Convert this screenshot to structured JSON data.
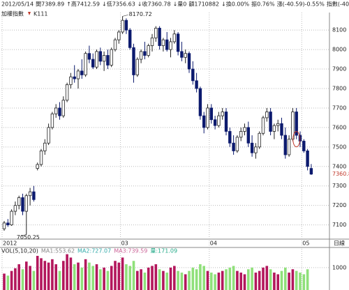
{
  "chart_data": {
    "type": "candlestick",
    "header": [
      "2012/05/14",
      "開7389.89",
      "↑高7412.59",
      "↓低7356.63",
      "↓收7360.78",
      "↓量0",
      "額1710882",
      "↓換0.00%",
      "振0.76%",
      "漲(-40.59)-0.55%",
      "指數(-40.59)-0."
    ],
    "subheader": [
      "加權指數",
      "K111"
    ],
    "open": [
      7080,
      7110,
      7100,
      7170,
      7200,
      7240,
      7170,
      7250,
      7270,
      7390,
      7410,
      7480,
      7520,
      7600,
      7670,
      7700,
      7660,
      7740,
      7820,
      7860,
      7850,
      7890,
      7870,
      7980,
      7950,
      7910,
      7990,
      7940,
      7970,
      7920,
      8000,
      8050,
      8090,
      8150,
      8100,
      8010,
      7870,
      7950,
      7990,
      7970,
      8020,
      8060,
      8110,
      8020,
      8050,
      8000,
      8040,
      8080,
      7990,
      7960,
      7980,
      7900,
      7840,
      7800,
      7660,
      7600,
      7700,
      7640,
      7610,
      7660,
      7680,
      7580,
      7520,
      7480,
      7550,
      7580,
      7600,
      7520,
      7470,
      7500,
      7570,
      7650,
      7680,
      7580,
      7610,
      7620,
      7560,
      7460,
      7540,
      7680,
      7560,
      7530,
      7480,
      7389.89
    ],
    "high": [
      7120,
      7130,
      7180,
      7220,
      7250,
      7260,
      7260,
      7290,
      7300,
      7420,
      7490,
      7540,
      7620,
      7680,
      7720,
      7730,
      7760,
      7830,
      7880,
      7920,
      7900,
      7950,
      7990,
      8020,
      7980,
      8000,
      8010,
      7990,
      8000,
      8010,
      8060,
      8100,
      8170.72,
      8160,
      8110,
      8030,
      7960,
      8000,
      8040,
      8030,
      8080,
      8120,
      8120,
      8060,
      8090,
      8060,
      8100,
      8090,
      8040,
      8000,
      7990,
      7940,
      7880,
      7810,
      7680,
      7720,
      7720,
      7660,
      7680,
      7700,
      7700,
      7600,
      7560,
      7560,
      7600,
      7620,
      7630,
      7560,
      7520,
      7580,
      7660,
      7700,
      7700,
      7620,
      7640,
      7650,
      7600,
      7560,
      7700,
      7700,
      7580,
      7540,
      7490,
      7412.59
    ],
    "low": [
      7070,
      7090,
      7095,
      7150,
      7180,
      7150,
      7050.25,
      7200,
      7220,
      7380,
      7400,
      7460,
      7510,
      7590,
      7650,
      7640,
      7650,
      7730,
      7800,
      7830,
      7800,
      7850,
      7860,
      7930,
      7900,
      7900,
      7920,
      7890,
      7900,
      7910,
      7990,
      8030,
      8080,
      8080,
      8000,
      7830,
      7860,
      7930,
      7950,
      7960,
      7990,
      8040,
      8000,
      7990,
      7990,
      7960,
      8030,
      7970,
      7940,
      7930,
      7880,
      7820,
      7780,
      7640,
      7570,
      7590,
      7620,
      7590,
      7600,
      7640,
      7560,
      7500,
      7460,
      7470,
      7530,
      7560,
      7500,
      7450,
      7440,
      7490,
      7560,
      7630,
      7560,
      7540,
      7580,
      7540,
      7440,
      7450,
      7530,
      7540,
      7500,
      7470,
      7380,
      7356.63
    ],
    "close": [
      7110,
      7100,
      7170,
      7200,
      7240,
      7170,
      7250,
      7270,
      7230,
      7410,
      7480,
      7520,
      7600,
      7670,
      7700,
      7660,
      7740,
      7820,
      7860,
      7850,
      7890,
      7870,
      7980,
      7950,
      7910,
      7990,
      7940,
      7970,
      7920,
      8000,
      8050,
      8090,
      8150,
      8100,
      8010,
      7870,
      7950,
      7990,
      7970,
      8020,
      8060,
      8110,
      8020,
      8050,
      8000,
      8040,
      8080,
      7990,
      7960,
      7980,
      7900,
      7840,
      7800,
      7660,
      7600,
      7700,
      7640,
      7610,
      7660,
      7680,
      7580,
      7520,
      7480,
      7550,
      7580,
      7600,
      7520,
      7470,
      7500,
      7570,
      7650,
      7680,
      7580,
      7610,
      7620,
      7560,
      7460,
      7540,
      7680,
      7560,
      7530,
      7480,
      7400,
      7360.78
    ],
    "volume": [
      820,
      760,
      900,
      980,
      1100,
      950,
      1180,
      1050,
      900,
      1350,
      1280,
      1200,
      1150,
      1250,
      1100,
      900,
      1200,
      1400,
      1300,
      1100,
      1150,
      1000,
      1250,
      1150,
      1050,
      1100,
      950,
      1000,
      900,
      1050,
      1200,
      1150,
      1300,
      1100,
      1050,
      1200,
      900,
      950,
      850,
      1000,
      1050,
      1100,
      950,
      900,
      850,
      1000,
      1050,
      900,
      850,
      800,
      900,
      1000,
      950,
      1100,
      1050,
      900,
      850,
      800,
      850,
      900,
      950,
      1000,
      1050,
      900,
      850,
      800,
      950,
      1000,
      850,
      900,
      1000,
      1050,
      950,
      850,
      800,
      900,
      1000,
      850,
      950,
      900,
      850,
      800,
      950,
      171.09
    ],
    "ylim": [
      7045,
      8190
    ],
    "yticks": [
      7100,
      7200,
      7300,
      7400,
      7500,
      7600,
      7700,
      7800,
      7900,
      8000,
      8100
    ],
    "xticks": [
      {
        "value": 0,
        "label": "2012"
      },
      {
        "value": 32,
        "label": "03"
      },
      {
        "value": 56,
        "label": "04"
      },
      {
        "value": 81,
        "label": "05"
      }
    ],
    "x_unit": "日線",
    "volume_label": "VOL(5,10,20)",
    "volume_ma": [
      "MA1:553.62",
      "MA2:727.07",
      "MA3:739.59",
      "量:171.09"
    ],
    "vlim": [
      330,
      1580
    ],
    "vticks": [
      1000
    ],
    "annotations": [
      "8170.72",
      "7050.25"
    ],
    "last_price": "7360.8",
    "up_color": "#222",
    "down_color": "#0c1a6e",
    "vol_up_color": "#b3175c",
    "vol_down_color": "#8fe07a"
  }
}
